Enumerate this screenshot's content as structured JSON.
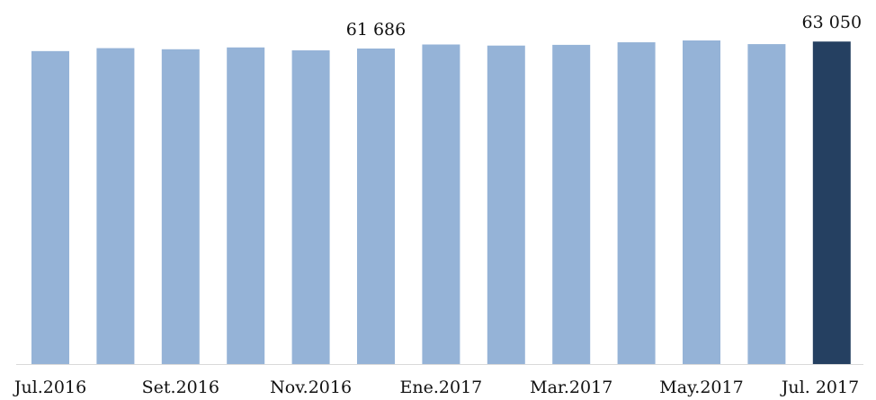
{
  "chart_data": {
    "type": "bar",
    "categories": [
      "Jul.2016",
      null,
      "Set.2016",
      null,
      "Nov.2016",
      null,
      "Ene.2017",
      null,
      "Mar.2017",
      null,
      "May.2017",
      null,
      "Jul. 2017"
    ],
    "values": [
      61183,
      61758,
      61542,
      61901,
      61327,
      61686,
      62476,
      62261,
      62404,
      62906,
      63265,
      62548,
      63050
    ],
    "value_labels": [
      null,
      null,
      null,
      null,
      null,
      "61 686",
      null,
      null,
      null,
      null,
      null,
      null,
      "63 050"
    ],
    "colors": [
      "#95b3d7",
      "#95b3d7",
      "#95b3d7",
      "#95b3d7",
      "#95b3d7",
      "#95b3d7",
      "#95b3d7",
      "#95b3d7",
      "#95b3d7",
      "#95b3d7",
      "#95b3d7",
      "#95b3d7",
      "#254061"
    ]
  }
}
